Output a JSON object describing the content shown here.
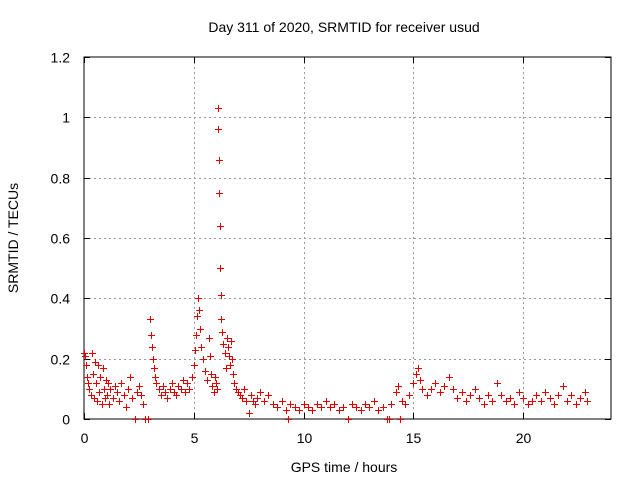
{
  "chart_data": {
    "type": "scatter",
    "title": "Day 311 of 2020, SRMTID for receiver usud",
    "xlabel": "GPS time / hours",
    "ylabel": "SRMTID / TECUs",
    "xlim": [
      0,
      24
    ],
    "ylim": [
      0,
      1.2
    ],
    "x_ticks": [
      0,
      5,
      10,
      15,
      20
    ],
    "x_tick_labels": [
      "0",
      "5",
      "10",
      "15",
      "20"
    ],
    "y_ticks": [
      0,
      0.2,
      0.4,
      0.6,
      0.8,
      1.0,
      1.2
    ],
    "y_tick_labels": [
      "0",
      "0.2",
      "0.4",
      "0.6",
      "0.8",
      "1",
      "1.2"
    ],
    "grid": true,
    "marker": "plus",
    "color": "#e00000",
    "series": [
      {
        "name": "SRMTID",
        "points": [
          [
            0.0,
            0.22
          ],
          [
            0.05,
            0.21
          ],
          [
            0.1,
            0.18
          ],
          [
            0.15,
            0.14
          ],
          [
            0.2,
            0.12
          ],
          [
            0.25,
            0.1
          ],
          [
            0.3,
            0.08
          ],
          [
            0.35,
            0.22
          ],
          [
            0.4,
            0.15
          ],
          [
            0.45,
            0.07
          ],
          [
            0.5,
            0.19
          ],
          [
            0.55,
            0.12
          ],
          [
            0.6,
            0.06
          ],
          [
            0.65,
            0.18
          ],
          [
            0.7,
            0.09
          ],
          [
            0.75,
            0.14
          ],
          [
            0.8,
            0.05
          ],
          [
            0.85,
            0.17
          ],
          [
            0.9,
            0.1
          ],
          [
            0.95,
            0.07
          ],
          [
            1.0,
            0.13
          ],
          [
            1.05,
            0.08
          ],
          [
            1.1,
            0.12
          ],
          [
            1.15,
            0.05
          ],
          [
            1.2,
            0.1
          ],
          [
            1.3,
            0.07
          ],
          [
            1.4,
            0.11
          ],
          [
            1.5,
            0.09
          ],
          [
            1.6,
            0.06
          ],
          [
            1.7,
            0.12
          ],
          [
            1.8,
            0.08
          ],
          [
            1.9,
            0.04
          ],
          [
            2.0,
            0.1
          ],
          [
            2.1,
            0.14
          ],
          [
            2.2,
            0.07
          ],
          [
            2.3,
            0.0
          ],
          [
            2.4,
            0.09
          ],
          [
            2.5,
            0.11
          ],
          [
            2.6,
            0.08
          ],
          [
            2.7,
            0.05
          ],
          [
            2.8,
            0.0
          ],
          [
            2.9,
            0.0
          ],
          [
            3.0,
            0.33
          ],
          [
            3.05,
            0.28
          ],
          [
            3.1,
            0.24
          ],
          [
            3.15,
            0.2
          ],
          [
            3.2,
            0.17
          ],
          [
            3.25,
            0.14
          ],
          [
            3.3,
            0.12
          ],
          [
            3.4,
            0.1
          ],
          [
            3.5,
            0.08
          ],
          [
            3.6,
            0.11
          ],
          [
            3.7,
            0.09
          ],
          [
            3.8,
            0.07
          ],
          [
            3.9,
            0.1
          ],
          [
            4.0,
            0.12
          ],
          [
            4.1,
            0.09
          ],
          [
            4.2,
            0.08
          ],
          [
            4.3,
            0.11
          ],
          [
            4.4,
            0.1
          ],
          [
            4.5,
            0.13
          ],
          [
            4.6,
            0.09
          ],
          [
            4.7,
            0.12
          ],
          [
            4.8,
            0.1
          ],
          [
            4.9,
            0.14
          ],
          [
            5.0,
            0.18
          ],
          [
            5.05,
            0.23
          ],
          [
            5.1,
            0.28
          ],
          [
            5.15,
            0.34
          ],
          [
            5.2,
            0.4
          ],
          [
            5.25,
            0.36
          ],
          [
            5.3,
            0.3
          ],
          [
            5.35,
            0.24
          ],
          [
            5.4,
            0.2
          ],
          [
            5.5,
            0.16
          ],
          [
            5.6,
            0.13
          ],
          [
            5.7,
            0.27
          ],
          [
            5.75,
            0.21
          ],
          [
            5.8,
            0.15
          ],
          [
            5.85,
            0.11
          ],
          [
            5.9,
            0.09
          ],
          [
            5.95,
            0.14
          ],
          [
            6.0,
            0.12
          ],
          [
            6.05,
            0.1
          ],
          [
            6.1,
            1.03
          ],
          [
            6.12,
            0.96
          ],
          [
            6.14,
            0.86
          ],
          [
            6.16,
            0.75
          ],
          [
            6.18,
            0.64
          ],
          [
            6.2,
            0.5
          ],
          [
            6.22,
            0.41
          ],
          [
            6.25,
            0.33
          ],
          [
            6.3,
            0.29
          ],
          [
            6.35,
            0.25
          ],
          [
            6.4,
            0.22
          ],
          [
            6.45,
            0.17
          ],
          [
            6.5,
            0.27
          ],
          [
            6.55,
            0.24
          ],
          [
            6.6,
            0.21
          ],
          [
            6.65,
            0.18
          ],
          [
            6.7,
            0.26
          ],
          [
            6.75,
            0.2
          ],
          [
            6.8,
            0.15
          ],
          [
            6.85,
            0.12
          ],
          [
            6.9,
            0.1
          ],
          [
            7.0,
            0.09
          ],
          [
            7.1,
            0.08
          ],
          [
            7.2,
            0.07
          ],
          [
            7.3,
            0.1
          ],
          [
            7.4,
            0.06
          ],
          [
            7.5,
            0.02
          ],
          [
            7.6,
            0.08
          ],
          [
            7.7,
            0.06
          ],
          [
            7.8,
            0.05
          ],
          [
            7.9,
            0.07
          ],
          [
            8.0,
            0.09
          ],
          [
            8.2,
            0.06
          ],
          [
            8.4,
            0.08
          ],
          [
            8.6,
            0.05
          ],
          [
            8.8,
            0.04
          ],
          [
            9.0,
            0.06
          ],
          [
            9.2,
            0.03
          ],
          [
            9.3,
            0.0
          ],
          [
            9.4,
            0.05
          ],
          [
            9.6,
            0.04
          ],
          [
            9.8,
            0.03
          ],
          [
            10.0,
            0.05
          ],
          [
            10.2,
            0.04
          ],
          [
            10.4,
            0.03
          ],
          [
            10.6,
            0.05
          ],
          [
            10.8,
            0.04
          ],
          [
            11.0,
            0.06
          ],
          [
            11.2,
            0.04
          ],
          [
            11.4,
            0.05
          ],
          [
            11.6,
            0.03
          ],
          [
            11.8,
            0.04
          ],
          [
            12.0,
            0.0
          ],
          [
            12.2,
            0.05
          ],
          [
            12.4,
            0.04
          ],
          [
            12.6,
            0.03
          ],
          [
            12.8,
            0.05
          ],
          [
            13.0,
            0.04
          ],
          [
            13.2,
            0.06
          ],
          [
            13.4,
            0.03
          ],
          [
            13.6,
            0.04
          ],
          [
            13.8,
            0.0
          ],
          [
            13.9,
            0.0
          ],
          [
            14.0,
            0.05
          ],
          [
            14.2,
            0.09
          ],
          [
            14.3,
            0.11
          ],
          [
            14.4,
            0.0
          ],
          [
            14.5,
            0.06
          ],
          [
            14.6,
            0.05
          ],
          [
            14.8,
            0.08
          ],
          [
            15.0,
            0.12
          ],
          [
            15.1,
            0.15
          ],
          [
            15.2,
            0.17
          ],
          [
            15.3,
            0.13
          ],
          [
            15.4,
            0.1
          ],
          [
            15.6,
            0.08
          ],
          [
            15.8,
            0.1
          ],
          [
            16.0,
            0.12
          ],
          [
            16.2,
            0.09
          ],
          [
            16.4,
            0.11
          ],
          [
            16.6,
            0.14
          ],
          [
            16.8,
            0.1
          ],
          [
            17.0,
            0.07
          ],
          [
            17.2,
            0.09
          ],
          [
            17.4,
            0.06
          ],
          [
            17.6,
            0.08
          ],
          [
            17.8,
            0.1
          ],
          [
            18.0,
            0.07
          ],
          [
            18.2,
            0.05
          ],
          [
            18.4,
            0.08
          ],
          [
            18.6,
            0.06
          ],
          [
            18.8,
            0.12
          ],
          [
            19.0,
            0.08
          ],
          [
            19.2,
            0.06
          ],
          [
            19.4,
            0.07
          ],
          [
            19.6,
            0.05
          ],
          [
            19.8,
            0.09
          ],
          [
            20.0,
            0.07
          ],
          [
            20.2,
            0.05
          ],
          [
            20.4,
            0.06
          ],
          [
            20.6,
            0.08
          ],
          [
            20.8,
            0.06
          ],
          [
            21.0,
            0.09
          ],
          [
            21.2,
            0.07
          ],
          [
            21.4,
            0.05
          ],
          [
            21.6,
            0.08
          ],
          [
            21.8,
            0.11
          ],
          [
            22.0,
            0.06
          ],
          [
            22.2,
            0.08
          ],
          [
            22.4,
            0.05
          ],
          [
            22.6,
            0.07
          ],
          [
            22.8,
            0.09
          ],
          [
            22.9,
            0.06
          ]
        ]
      }
    ]
  }
}
